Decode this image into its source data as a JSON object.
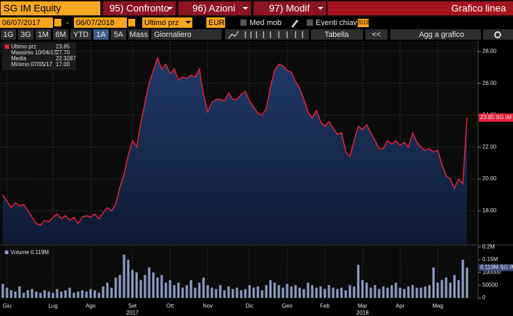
{
  "toolbar": {
    "ticker": "SG IM Equity",
    "tabs": [
      "95) Confronto",
      "96) Azioni",
      "97) Modif"
    ],
    "chart_type": "Grafico linea"
  },
  "controls": {
    "start_date": "06/07/2017",
    "separator": "-",
    "end_date": "06/07/2018",
    "field": "Ultimo prz",
    "currency": "EUR",
    "moving_avg": "Med mob",
    "events": "Eventi chiave",
    "badge": "2018"
  },
  "buttons": {
    "periods": [
      "1G",
      "3G",
      "1M",
      "6M",
      "YTD",
      "1A",
      "5A",
      "Mass"
    ],
    "active_period": "1A",
    "frequency": "Giornaliero",
    "table": "Tabella",
    "collapse": "<<",
    "add": "Agg a grafico"
  },
  "chart_data": [
    {
      "type": "area",
      "categories": [
        null,
        "Giu",
        null,
        null,
        null,
        null,
        null,
        null,
        null,
        null,
        null,
        null,
        "Lug",
        null,
        null,
        null,
        null,
        null,
        null,
        null,
        null,
        "Ago",
        null,
        null,
        null,
        null,
        null,
        null,
        null,
        null,
        null,
        "Set",
        null,
        null,
        null,
        null,
        null,
        null,
        null,
        null,
        "Ott",
        null,
        null,
        null,
        null,
        null,
        null,
        null,
        null,
        "Nov",
        null,
        null,
        null,
        null,
        null,
        null,
        null,
        null,
        null,
        "Dic",
        null,
        null,
        null,
        null,
        null,
        null,
        null,
        null,
        "Gen",
        null,
        null,
        null,
        null,
        null,
        null,
        null,
        null,
        "Feb",
        null,
        null,
        null,
        null,
        null,
        null,
        null,
        null,
        "Mar",
        null,
        null,
        null,
        null,
        null,
        null,
        null,
        null,
        "Apr",
        null,
        null,
        null,
        null,
        null,
        null,
        null,
        null,
        "Mag",
        null,
        null,
        null,
        null,
        null,
        null,
        null
      ],
      "category_years": [
        null,
        null,
        null,
        null,
        null,
        null,
        null,
        null,
        null,
        null,
        null,
        null,
        null,
        null,
        null,
        null,
        null,
        null,
        null,
        null,
        null,
        null,
        null,
        null,
        null,
        null,
        null,
        null,
        null,
        null,
        null,
        "2017",
        null,
        null,
        null,
        null,
        null,
        null,
        null,
        null,
        null,
        null,
        null,
        null,
        null,
        null,
        null,
        null,
        null,
        null,
        null,
        null,
        null,
        null,
        null,
        null,
        null,
        null,
        null,
        null,
        null,
        null,
        null,
        null,
        null,
        null,
        null,
        null,
        null,
        null,
        null,
        null,
        null,
        null,
        null,
        null,
        null,
        null,
        null,
        null,
        null,
        null,
        null,
        null,
        null,
        null,
        "2018",
        null,
        null,
        null,
        null,
        null,
        null,
        null,
        null,
        null,
        null,
        null,
        null,
        null,
        null,
        null,
        null,
        null,
        null,
        null,
        null,
        null,
        null,
        null,
        null,
        null
      ],
      "series": [
        {
          "name": "Ultimo prz",
          "color": "#e8223c",
          "last_label": "23.85 SG IM",
          "values": [
            19.0,
            18.6,
            18.2,
            18.5,
            18.3,
            18.4,
            18.0,
            17.6,
            17.2,
            17.1,
            17.4,
            17.3,
            17.6,
            17.8,
            17.5,
            17.7,
            17.4,
            17.6,
            17.2,
            17.6,
            17.7,
            17.6,
            17.8,
            17.5,
            17.9,
            18.2,
            18.0,
            18.4,
            19.5,
            20.3,
            21.5,
            22.4,
            22.0,
            23.5,
            24.8,
            26.0,
            26.8,
            27.6,
            26.9,
            27.2,
            26.6,
            26.9,
            26.2,
            26.4,
            26.3,
            26.5,
            26.4,
            26.9,
            25.3,
            24.2,
            24.8,
            25.0,
            25.0,
            24.9,
            25.4,
            25.0,
            25.0,
            25.3,
            25.5,
            24.9,
            24.5,
            24.1,
            24.0,
            24.4,
            25.8,
            26.8,
            27.2,
            27.1,
            26.8,
            26.7,
            26.1,
            25.7,
            25.0,
            24.2,
            23.8,
            24.3,
            23.6,
            23.3,
            23.6,
            23.2,
            22.8,
            22.9,
            21.7,
            21.4,
            22.4,
            23.3,
            23.1,
            23.4,
            22.9,
            22.4,
            21.9,
            21.9,
            22.4,
            22.2,
            22.4,
            22.1,
            22.3,
            22.0,
            22.9,
            22.3,
            22.0,
            21.8,
            21.9,
            21.7,
            21.8,
            20.9,
            20.2,
            20.0,
            19.4,
            20.0,
            19.7,
            23.85
          ]
        }
      ],
      "stats": [
        {
          "name": "Massimo 10/04/17",
          "value": 27.7,
          "value_label": "27.70"
        },
        {
          "name": "Media",
          "value": 22.3287
        },
        {
          "name": "Minimo 07/05/17",
          "value": 17,
          "value_label": "17.00"
        }
      ],
      "ylim": [
        15.9,
        28.65
      ],
      "yticks": [
        {
          "value": 18,
          "label": "18.00"
        },
        {
          "value": 20,
          "label": "20.00"
        },
        {
          "value": 22,
          "label": "22.00"
        },
        {
          "value": 24,
          "label": "24.00"
        },
        {
          "value": 26,
          "label": "26.00"
        },
        {
          "value": 28,
          "label": "28.00"
        }
      ],
      "grid": true
    },
    {
      "type": "bar",
      "series": [
        {
          "name": "Volume",
          "color": "#8d9cc6",
          "legend_value": "0.119M",
          "last_label": "0.119M SG IM",
          "values": [
            55000,
            40000,
            30000,
            25000,
            45000,
            20000,
            30000,
            35000,
            25000,
            20000,
            30000,
            25000,
            20000,
            35000,
            25000,
            30000,
            40000,
            20000,
            25000,
            30000,
            25000,
            35000,
            30000,
            20000,
            45000,
            60000,
            40000,
            80000,
            90000,
            170000,
            150000,
            110000,
            100000,
            70000,
            90000,
            120000,
            100000,
            80000,
            90000,
            60000,
            70000,
            50000,
            60000,
            40000,
            50000,
            70000,
            40000,
            60000,
            80000,
            50000,
            40000,
            35000,
            50000,
            30000,
            45000,
            35000,
            40000,
            30000,
            35000,
            50000,
            40000,
            45000,
            30000,
            50000,
            70000,
            60000,
            50000,
            40000,
            55000,
            45000,
            50000,
            40000,
            35000,
            60000,
            50000,
            40000,
            45000,
            35000,
            50000,
            40000,
            35000,
            40000,
            30000,
            50000,
            45000,
            130000,
            70000,
            60000,
            40000,
            50000,
            35000,
            45000,
            40000,
            50000,
            60000,
            40000,
            35000,
            45000,
            50000,
            40000,
            40000,
            45000,
            50000,
            120000,
            60000,
            70000,
            80000,
            60000,
            90000,
            70000,
            150000,
            119000
          ]
        }
      ],
      "ylim": [
        0,
        205000
      ],
      "yticks": [
        0,
        {
          "value": 50000,
          "label": "50000"
        },
        {
          "value": 100000,
          "label": "100000"
        },
        {
          "value": 150000,
          "label": "0.15M"
        },
        {
          "value": 200000,
          "label": "0.2M"
        }
      ]
    }
  ]
}
